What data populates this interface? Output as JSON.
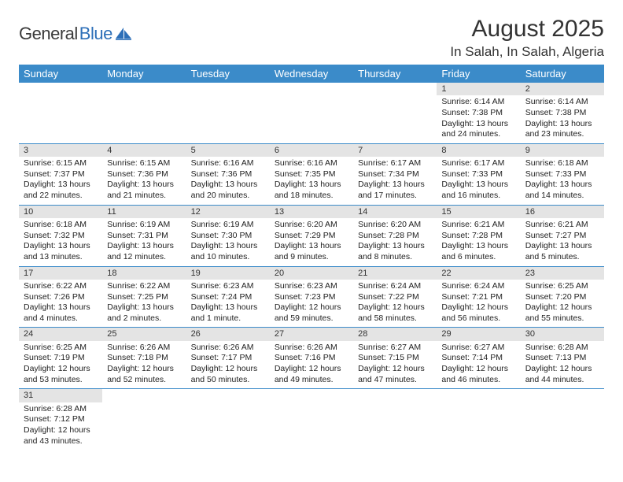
{
  "logo": {
    "part1": "General",
    "part2": "Blue"
  },
  "title": "August 2025",
  "location": "In Salah, In Salah, Algeria",
  "colors": {
    "header_bg": "#3b8bc9",
    "header_text": "#ffffff",
    "daynum_bg": "#e4e4e4",
    "border": "#3b8bc9",
    "logo_blue": "#2d6fb8"
  },
  "days_of_week": [
    "Sunday",
    "Monday",
    "Tuesday",
    "Wednesday",
    "Thursday",
    "Friday",
    "Saturday"
  ],
  "weeks": [
    [
      null,
      null,
      null,
      null,
      null,
      {
        "n": "1",
        "sr": "Sunrise: 6:14 AM",
        "ss": "Sunset: 7:38 PM",
        "dl": "Daylight: 13 hours and 24 minutes."
      },
      {
        "n": "2",
        "sr": "Sunrise: 6:14 AM",
        "ss": "Sunset: 7:38 PM",
        "dl": "Daylight: 13 hours and 23 minutes."
      }
    ],
    [
      {
        "n": "3",
        "sr": "Sunrise: 6:15 AM",
        "ss": "Sunset: 7:37 PM",
        "dl": "Daylight: 13 hours and 22 minutes."
      },
      {
        "n": "4",
        "sr": "Sunrise: 6:15 AM",
        "ss": "Sunset: 7:36 PM",
        "dl": "Daylight: 13 hours and 21 minutes."
      },
      {
        "n": "5",
        "sr": "Sunrise: 6:16 AM",
        "ss": "Sunset: 7:36 PM",
        "dl": "Daylight: 13 hours and 20 minutes."
      },
      {
        "n": "6",
        "sr": "Sunrise: 6:16 AM",
        "ss": "Sunset: 7:35 PM",
        "dl": "Daylight: 13 hours and 18 minutes."
      },
      {
        "n": "7",
        "sr": "Sunrise: 6:17 AM",
        "ss": "Sunset: 7:34 PM",
        "dl": "Daylight: 13 hours and 17 minutes."
      },
      {
        "n": "8",
        "sr": "Sunrise: 6:17 AM",
        "ss": "Sunset: 7:33 PM",
        "dl": "Daylight: 13 hours and 16 minutes."
      },
      {
        "n": "9",
        "sr": "Sunrise: 6:18 AM",
        "ss": "Sunset: 7:33 PM",
        "dl": "Daylight: 13 hours and 14 minutes."
      }
    ],
    [
      {
        "n": "10",
        "sr": "Sunrise: 6:18 AM",
        "ss": "Sunset: 7:32 PM",
        "dl": "Daylight: 13 hours and 13 minutes."
      },
      {
        "n": "11",
        "sr": "Sunrise: 6:19 AM",
        "ss": "Sunset: 7:31 PM",
        "dl": "Daylight: 13 hours and 12 minutes."
      },
      {
        "n": "12",
        "sr": "Sunrise: 6:19 AM",
        "ss": "Sunset: 7:30 PM",
        "dl": "Daylight: 13 hours and 10 minutes."
      },
      {
        "n": "13",
        "sr": "Sunrise: 6:20 AM",
        "ss": "Sunset: 7:29 PM",
        "dl": "Daylight: 13 hours and 9 minutes."
      },
      {
        "n": "14",
        "sr": "Sunrise: 6:20 AM",
        "ss": "Sunset: 7:28 PM",
        "dl": "Daylight: 13 hours and 8 minutes."
      },
      {
        "n": "15",
        "sr": "Sunrise: 6:21 AM",
        "ss": "Sunset: 7:28 PM",
        "dl": "Daylight: 13 hours and 6 minutes."
      },
      {
        "n": "16",
        "sr": "Sunrise: 6:21 AM",
        "ss": "Sunset: 7:27 PM",
        "dl": "Daylight: 13 hours and 5 minutes."
      }
    ],
    [
      {
        "n": "17",
        "sr": "Sunrise: 6:22 AM",
        "ss": "Sunset: 7:26 PM",
        "dl": "Daylight: 13 hours and 4 minutes."
      },
      {
        "n": "18",
        "sr": "Sunrise: 6:22 AM",
        "ss": "Sunset: 7:25 PM",
        "dl": "Daylight: 13 hours and 2 minutes."
      },
      {
        "n": "19",
        "sr": "Sunrise: 6:23 AM",
        "ss": "Sunset: 7:24 PM",
        "dl": "Daylight: 13 hours and 1 minute."
      },
      {
        "n": "20",
        "sr": "Sunrise: 6:23 AM",
        "ss": "Sunset: 7:23 PM",
        "dl": "Daylight: 12 hours and 59 minutes."
      },
      {
        "n": "21",
        "sr": "Sunrise: 6:24 AM",
        "ss": "Sunset: 7:22 PM",
        "dl": "Daylight: 12 hours and 58 minutes."
      },
      {
        "n": "22",
        "sr": "Sunrise: 6:24 AM",
        "ss": "Sunset: 7:21 PM",
        "dl": "Daylight: 12 hours and 56 minutes."
      },
      {
        "n": "23",
        "sr": "Sunrise: 6:25 AM",
        "ss": "Sunset: 7:20 PM",
        "dl": "Daylight: 12 hours and 55 minutes."
      }
    ],
    [
      {
        "n": "24",
        "sr": "Sunrise: 6:25 AM",
        "ss": "Sunset: 7:19 PM",
        "dl": "Daylight: 12 hours and 53 minutes."
      },
      {
        "n": "25",
        "sr": "Sunrise: 6:26 AM",
        "ss": "Sunset: 7:18 PM",
        "dl": "Daylight: 12 hours and 52 minutes."
      },
      {
        "n": "26",
        "sr": "Sunrise: 6:26 AM",
        "ss": "Sunset: 7:17 PM",
        "dl": "Daylight: 12 hours and 50 minutes."
      },
      {
        "n": "27",
        "sr": "Sunrise: 6:26 AM",
        "ss": "Sunset: 7:16 PM",
        "dl": "Daylight: 12 hours and 49 minutes."
      },
      {
        "n": "28",
        "sr": "Sunrise: 6:27 AM",
        "ss": "Sunset: 7:15 PM",
        "dl": "Daylight: 12 hours and 47 minutes."
      },
      {
        "n": "29",
        "sr": "Sunrise: 6:27 AM",
        "ss": "Sunset: 7:14 PM",
        "dl": "Daylight: 12 hours and 46 minutes."
      },
      {
        "n": "30",
        "sr": "Sunrise: 6:28 AM",
        "ss": "Sunset: 7:13 PM",
        "dl": "Daylight: 12 hours and 44 minutes."
      }
    ],
    [
      {
        "n": "31",
        "sr": "Sunrise: 6:28 AM",
        "ss": "Sunset: 7:12 PM",
        "dl": "Daylight: 12 hours and 43 minutes."
      },
      null,
      null,
      null,
      null,
      null,
      null
    ]
  ]
}
